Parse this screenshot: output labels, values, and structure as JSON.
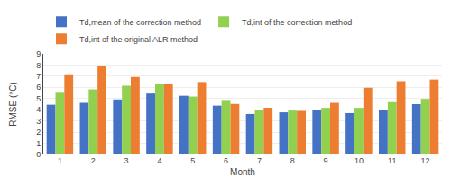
{
  "chart_data": {
    "type": "bar",
    "categories": [
      "1",
      "2",
      "3",
      "4",
      "5",
      "6",
      "7",
      "8",
      "9",
      "10",
      "11",
      "12"
    ],
    "series": [
      {
        "name": "Td,mean of the correction method",
        "color": "#4472C4",
        "values": [
          4.45,
          4.62,
          4.92,
          5.45,
          5.25,
          4.37,
          3.62,
          3.77,
          4.02,
          3.7,
          3.97,
          4.5
        ]
      },
      {
        "name": "Td,int of the correction method",
        "color": "#92D050",
        "values": [
          5.6,
          5.82,
          6.15,
          6.28,
          5.18,
          4.87,
          3.95,
          3.93,
          4.17,
          4.17,
          4.68,
          4.97
        ]
      },
      {
        "name": "Td,int of the original ALR method",
        "color": "#ED7D31",
        "values": [
          7.18,
          7.87,
          6.93,
          6.3,
          6.48,
          4.52,
          4.18,
          3.9,
          4.62,
          5.97,
          6.55,
          6.7
        ]
      }
    ],
    "x_label": "Month",
    "y_label": "RMSE (°C)",
    "ylim": [
      0,
      9
    ],
    "yticks": [
      0,
      1,
      2,
      3,
      4,
      5,
      6,
      7,
      8,
      9
    ],
    "grid": true,
    "legend": "upper left"
  }
}
